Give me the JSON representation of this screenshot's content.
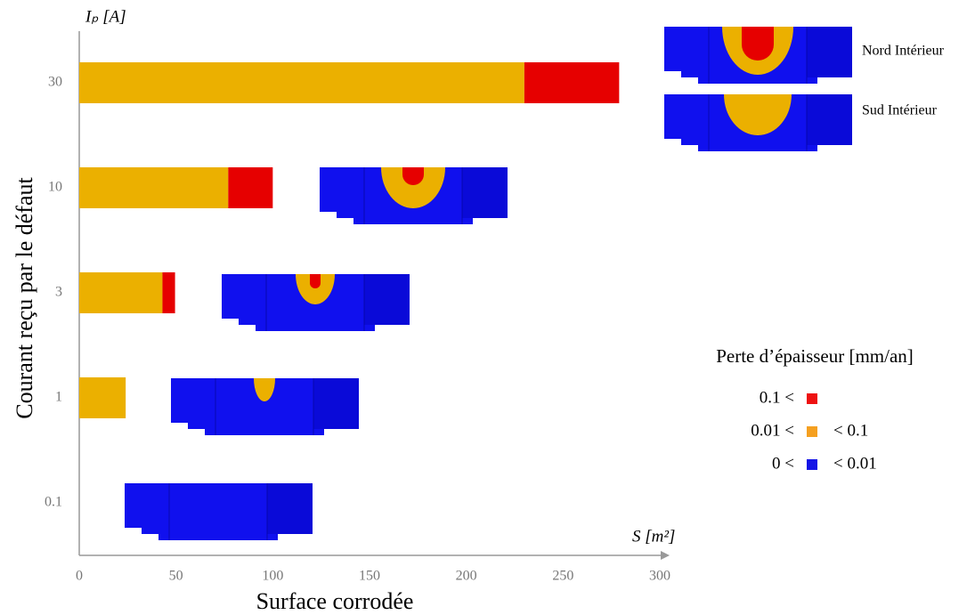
{
  "chart_data": {
    "type": "stacked-barh",
    "x_label": "Surface corrodée",
    "y_label": "Courant reçu par le défaut",
    "x_unit": "S [m²]",
    "y_unit": "Iₚ [A]",
    "categories": [
      "0.1",
      "1",
      "3",
      "10",
      "30"
    ],
    "series": [
      {
        "color": "#ebb000",
        "values": [
          0,
          24,
          43,
          77,
          230
        ]
      },
      {
        "color": "#e60000",
        "values": [
          0,
          0,
          6.5,
          23,
          49
        ]
      }
    ],
    "xlim": [
      0,
      300
    ],
    "xticks": [
      0,
      50,
      100,
      150,
      200,
      250,
      300
    ],
    "legend": {
      "title": "Perte d’épaisseur [mm/an]",
      "items": [
        {
          "left": "0.1 <",
          "color": "#ee1111"
        },
        {
          "left": "0.01 <",
          "right": "< 0.1",
          "color": "#f5a020"
        },
        {
          "left": "0 <",
          "right": "< 0.01",
          "color": "#1414e6"
        }
      ]
    },
    "annotations": [
      "Nord Intérieur",
      "Sud Intérieur"
    ]
  }
}
